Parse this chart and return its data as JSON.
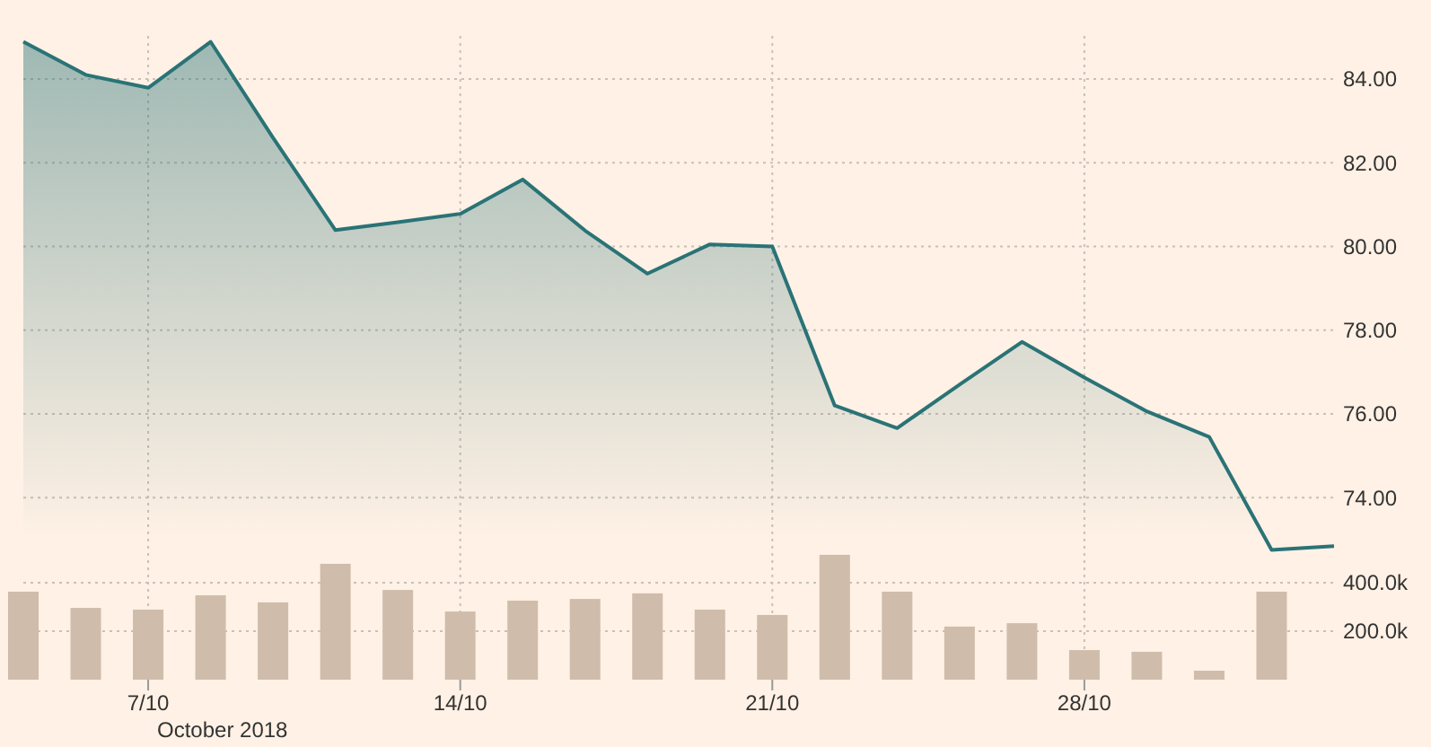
{
  "chart_data": {
    "type": "area",
    "categories": [
      null,
      null,
      "7/10",
      null,
      null,
      null,
      null,
      "14/10",
      null,
      null,
      null,
      null,
      "21/10",
      null,
      null,
      null,
      null,
      "28/10",
      null,
      null,
      null,
      null
    ],
    "series": [
      {
        "color": "#2a7376",
        "values": [
          84.89,
          84.1,
          83.79,
          84.89,
          82.6,
          80.39,
          80.58,
          80.78,
          81.6,
          80.38,
          79.35,
          80.05,
          80.0,
          76.2,
          75.66,
          76.7,
          77.72,
          76.87,
          76.06,
          75.45,
          72.75,
          72.84
        ]
      },
      {
        "type": "bar",
        "axis": "y2",
        "color": "#cfbcab",
        "values": [
          363000,
          296000,
          289000,
          348000,
          319000,
          478000,
          370000,
          281000,
          326000,
          333000,
          356000,
          289000,
          267000,
          515000,
          363000,
          219000,
          233000,
          122000,
          115000,
          37000,
          363000,
          null
        ]
      }
    ],
    "ylim": [
      69.65,
      85.03
    ],
    "yticks": [
      {
        "value": 74,
        "label": "74.00"
      },
      {
        "value": 76,
        "label": "76.00"
      },
      {
        "value": 78,
        "label": "78.00"
      },
      {
        "value": 80,
        "label": "80.00"
      },
      {
        "value": 82,
        "label": "82.00"
      },
      {
        "value": 84,
        "label": "84.00"
      }
    ],
    "y2lim": [
      0,
      2656000
    ],
    "y2ticks": [
      {
        "value": 200000,
        "label": "200.0k"
      },
      {
        "value": 400000,
        "label": "400.0k"
      }
    ],
    "grid": true,
    "annotations": [
      "October 2018"
    ]
  }
}
